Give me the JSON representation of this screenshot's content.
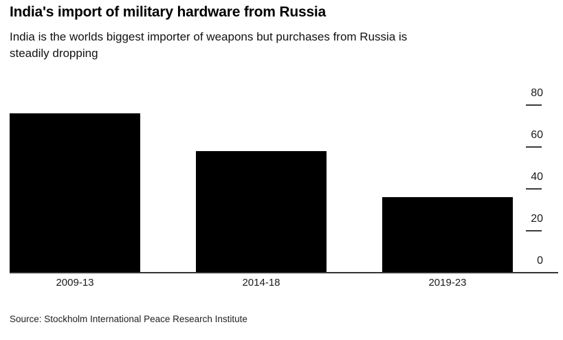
{
  "header": {
    "title": "India's import of military hardware from Russia",
    "subtitle_lines": [
      "India is the worlds biggest importer of weapons but purchases from Russia is",
      "steadily dropping"
    ]
  },
  "source_note": "Source: Stockholm International Peace Research Institute",
  "colors": {
    "bar": "#000000",
    "axis": "#333333",
    "tick": "#3a3a3a",
    "text": "#1a1a1a",
    "background": "#ffffff"
  },
  "chart_data": {
    "type": "bar",
    "title": "India's import of military hardware from Russia",
    "subtitle": "India is the worlds biggest importer of weapons but purchases from Russia is steadily dropping",
    "categories": [
      "2009-13",
      "2014-18",
      "2019-23"
    ],
    "values": [
      76,
      58,
      36
    ],
    "xlabel": "",
    "ylabel": "",
    "ylim": [
      0,
      80
    ],
    "yticks": [
      0,
      20,
      40,
      60,
      80
    ],
    "y_axis_side": "right",
    "grid": false,
    "legend": false,
    "bar_color": "#000000",
    "source": "Source: Stockholm International Peace Research Institute"
  }
}
